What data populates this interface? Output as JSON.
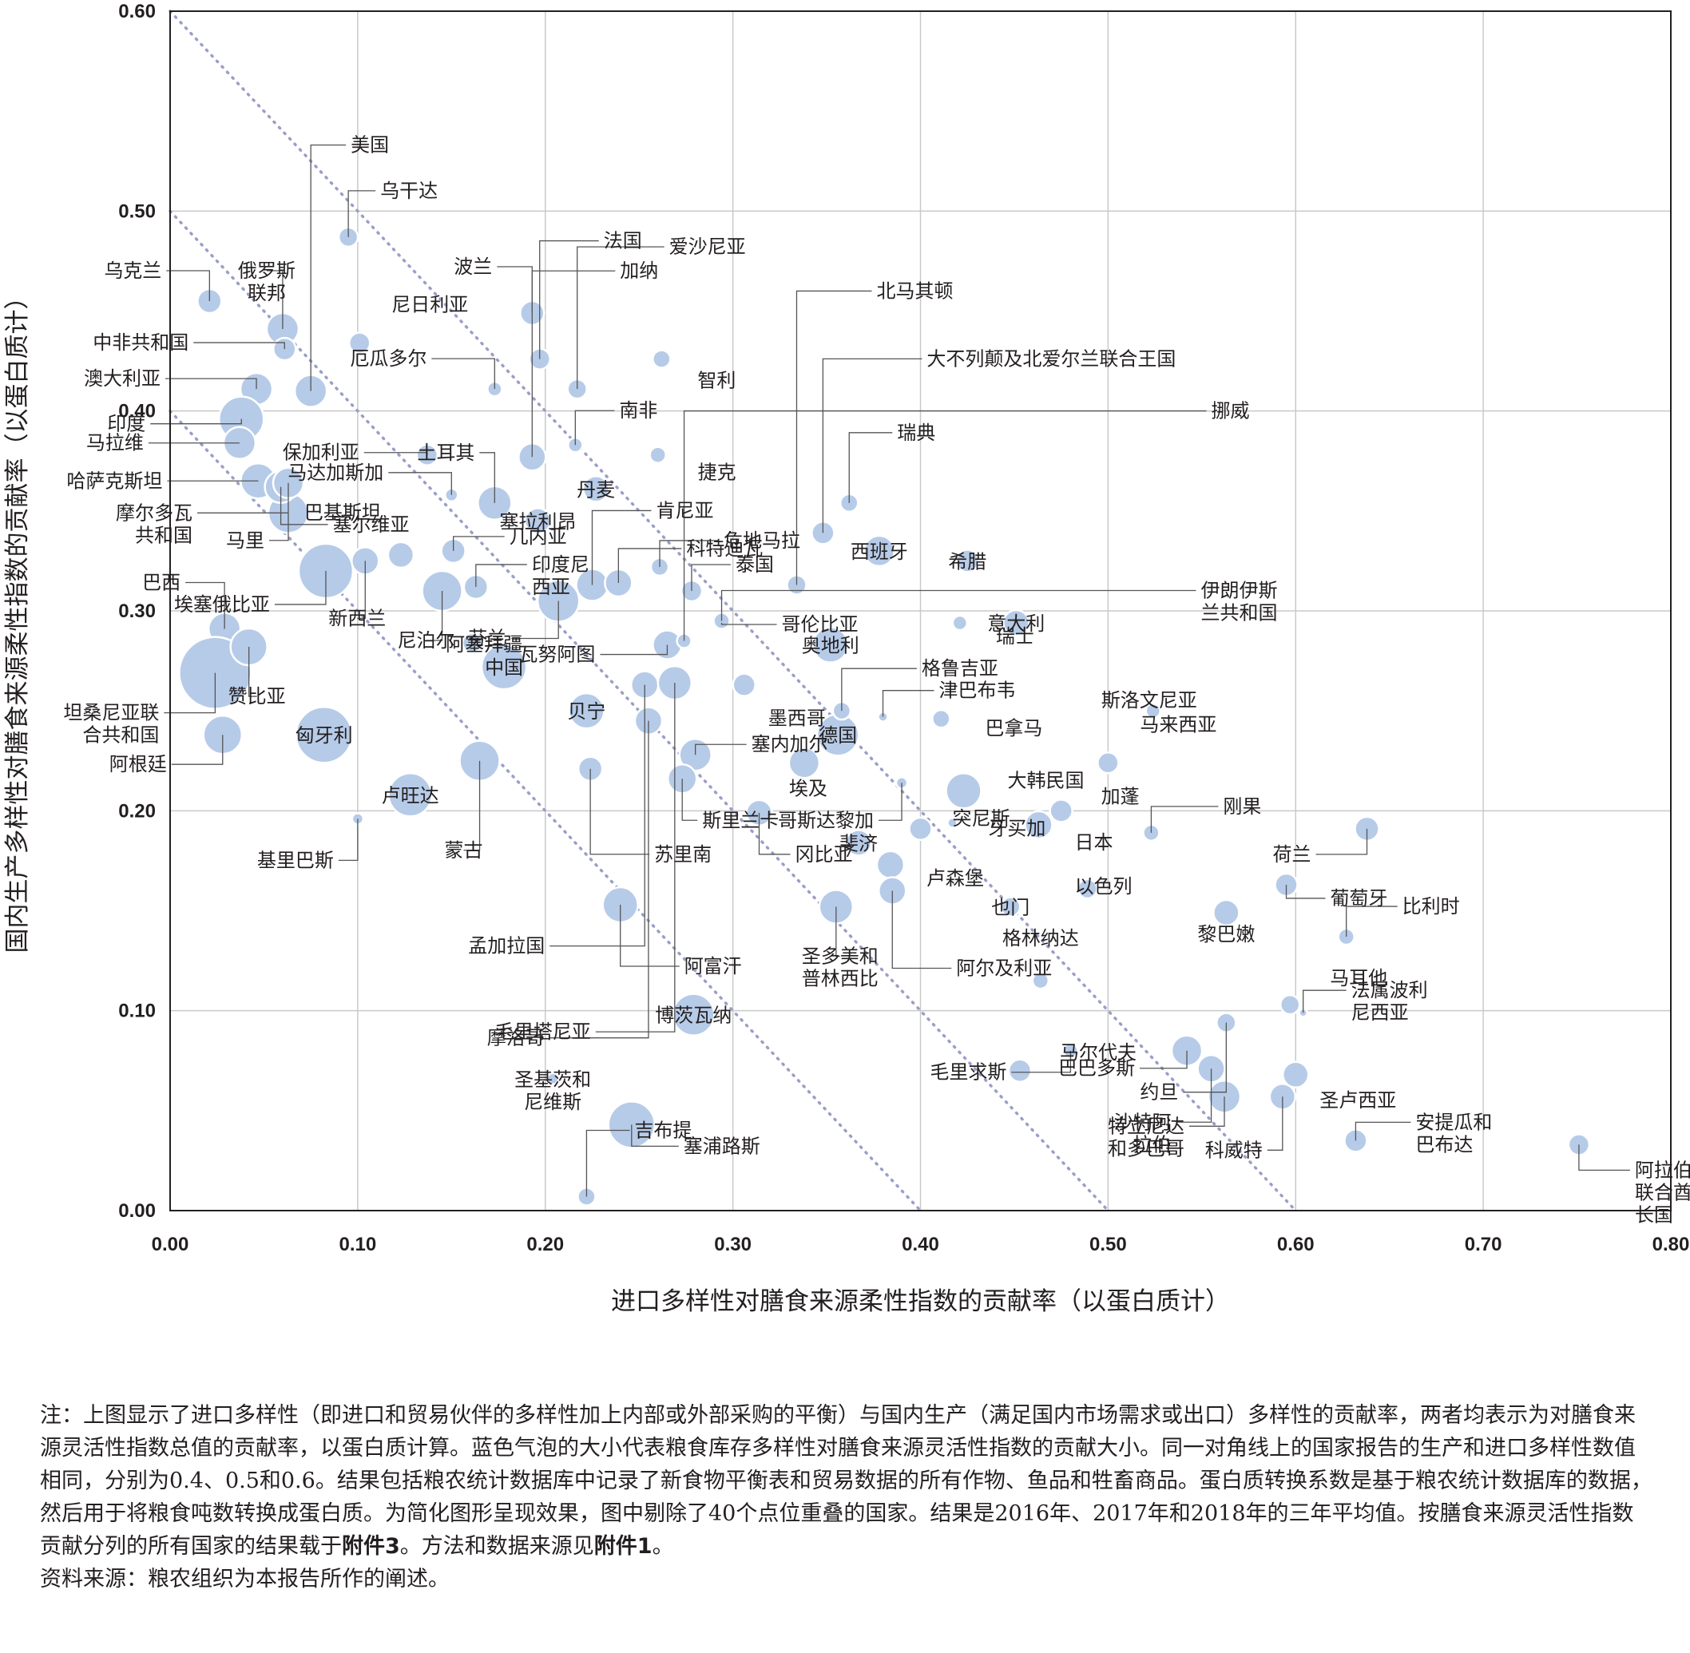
{
  "chart_data": {
    "type": "scatter",
    "title": "",
    "xlabel": "进口多样性对膳食来源柔性指数的贡献率（以蛋白质计）",
    "ylabel": "国内生产多样性对膳食来源柔性指数的贡献率（以蛋白质计）",
    "xlim": [
      0,
      0.8
    ],
    "ylim": [
      0,
      0.6
    ],
    "x_ticks": [
      "0.00",
      "0.10",
      "0.20",
      "0.30",
      "0.40",
      "0.50",
      "0.60",
      "0.70",
      "0.80"
    ],
    "y_ticks": [
      "0.00",
      "0.10",
      "0.20",
      "0.30",
      "0.40",
      "0.50",
      "0.60"
    ],
    "grid": true,
    "bubble_color": "#b6cbe8",
    "bubble_edge": "#ffffff",
    "diagonal_color": "#9a9ec8",
    "diagonals": [
      0.4,
      0.5,
      0.6
    ],
    "points": [
      {
        "name": "美国",
        "x": 0.075,
        "y": 0.41,
        "size": 20
      },
      {
        "name": "乌干达",
        "x": 0.095,
        "y": 0.487,
        "size": 12
      },
      {
        "name": "乌克兰",
        "x": 0.021,
        "y": 0.455,
        "size": 15
      },
      {
        "name": "俄罗斯\n联邦",
        "x": 0.06,
        "y": 0.441,
        "size": 20
      },
      {
        "name": "中非共和国",
        "x": 0.061,
        "y": 0.431,
        "size": 14
      },
      {
        "name": "澳大利亚",
        "x": 0.046,
        "y": 0.411,
        "size": 20
      },
      {
        "name": "印度",
        "x": 0.038,
        "y": 0.396,
        "size": 28
      },
      {
        "name": "马拉维",
        "x": 0.037,
        "y": 0.384,
        "size": 20
      },
      {
        "name": "哈萨克斯坦",
        "x": 0.047,
        "y": 0.365,
        "size": 22
      },
      {
        "name": "摩尔多瓦\n共和国",
        "x": 0.063,
        "y": 0.349,
        "size": 25
      },
      {
        "name": "塞尔维亚",
        "x": 0.059,
        "y": 0.362,
        "size": 20
      },
      {
        "name": "马里",
        "x": 0.063,
        "y": 0.364,
        "size": 19
      },
      {
        "name": "巴西",
        "x": 0.029,
        "y": 0.291,
        "size": 20
      },
      {
        "name": "埃塞俄比亚",
        "x": 0.083,
        "y": 0.32,
        "size": 34
      },
      {
        "name": "坦桑尼亚联\n合共和国",
        "x": 0.024,
        "y": 0.269,
        "size": 45
      },
      {
        "name": "阿根廷",
        "x": 0.028,
        "y": 0.238,
        "size": 24
      },
      {
        "name": "赞比亚",
        "x": 0.042,
        "y": 0.282,
        "size": 23
      },
      {
        "name": "匈牙利",
        "x": 0.082,
        "y": 0.238,
        "size": 35
      },
      {
        "name": "新西兰",
        "x": 0.104,
        "y": 0.325,
        "size": 17
      },
      {
        "name": "尼日利亚",
        "x": 0.101,
        "y": 0.434,
        "size": 13
      },
      {
        "name": "厄瓜多尔",
        "x": 0.173,
        "y": 0.411,
        "size": 9
      },
      {
        "name": "保加利亚",
        "x": 0.137,
        "y": 0.378,
        "size": 13
      },
      {
        "name": "马达加斯加",
        "x": 0.15,
        "y": 0.358,
        "size": 8
      },
      {
        "name": "土耳其",
        "x": 0.173,
        "y": 0.354,
        "size": 21
      },
      {
        "name": "巴基斯坦",
        "x": 0.123,
        "y": 0.328,
        "size": 16
      },
      {
        "name": "几内亚",
        "x": 0.151,
        "y": 0.33,
        "size": 15
      },
      {
        "name": "尼泊尔",
        "x": 0.145,
        "y": 0.31,
        "size": 25
      },
      {
        "name": "印度尼\n西亚",
        "x": 0.163,
        "y": 0.312,
        "size": 15
      },
      {
        "name": "阿塞拜疆",
        "x": 0.161,
        "y": 0.284,
        "size": 12
      },
      {
        "name": "中国",
        "x": 0.178,
        "y": 0.272,
        "size": 28
      },
      {
        "name": "蒙古",
        "x": 0.165,
        "y": 0.225,
        "size": 25
      },
      {
        "name": "卢旺达",
        "x": 0.128,
        "y": 0.208,
        "size": 27
      },
      {
        "name": "基里巴斯",
        "x": 0.1,
        "y": 0.196,
        "size": 7
      },
      {
        "name": "波兰",
        "x": 0.193,
        "y": 0.449,
        "size": 15
      },
      {
        "name": "法国",
        "x": 0.197,
        "y": 0.426,
        "size": 13
      },
      {
        "name": "加纳",
        "x": 0.193,
        "y": 0.377,
        "size": 17
      },
      {
        "name": "爱沙尼亚",
        "x": 0.217,
        "y": 0.411,
        "size": 12
      },
      {
        "name": "塞拉利昂",
        "x": 0.196,
        "y": 0.345,
        "size": 16
      },
      {
        "name": "南非",
        "x": 0.216,
        "y": 0.383,
        "size": 9
      },
      {
        "name": "丹麦",
        "x": 0.227,
        "y": 0.361,
        "size": 16
      },
      {
        "name": "芬兰",
        "x": 0.207,
        "y": 0.305,
        "size": 26
      },
      {
        "name": "肯尼亚",
        "x": 0.225,
        "y": 0.313,
        "size": 20
      },
      {
        "name": "科特迪瓦",
        "x": 0.239,
        "y": 0.314,
        "size": 17
      },
      {
        "name": "瓦努阿图",
        "x": 0.265,
        "y": 0.283,
        "size": 18
      },
      {
        "name": "智利",
        "x": 0.262,
        "y": 0.426,
        "size": 11
      },
      {
        "name": "捷克",
        "x": 0.26,
        "y": 0.378,
        "size": 10
      },
      {
        "name": "危地马拉",
        "x": 0.261,
        "y": 0.322,
        "size": 11
      },
      {
        "name": "泰国",
        "x": 0.278,
        "y": 0.31,
        "size": 13
      },
      {
        "name": "哥伦比亚",
        "x": 0.294,
        "y": 0.294,
        "size": 9
      },
      {
        "name": "北马其顿",
        "x": 0.334,
        "y": 0.313,
        "size": 12
      },
      {
        "name": "大不列颠及北爱尔兰联合王国",
        "x": 0.348,
        "y": 0.339,
        "size": 14
      },
      {
        "name": "瑞典",
        "x": 0.362,
        "y": 0.354,
        "size": 11
      },
      {
        "name": "西班牙",
        "x": 0.378,
        "y": 0.33,
        "size": 19
      },
      {
        "name": "希腊",
        "x": 0.425,
        "y": 0.325,
        "size": 14
      },
      {
        "name": "挪威",
        "x": 0.274,
        "y": 0.285,
        "size": 9
      },
      {
        "name": "伊朗伊斯\n兰共和国",
        "x": 0.294,
        "y": 0.295,
        "size": 10
      },
      {
        "name": "贝宁",
        "x": 0.222,
        "y": 0.25,
        "size": 22
      },
      {
        "name": "孟加拉国",
        "x": 0.253,
        "y": 0.263,
        "size": 17
      },
      {
        "name": "摩洛哥",
        "x": 0.255,
        "y": 0.245,
        "size": 17
      },
      {
        "name": "毛里塔尼亚",
        "x": 0.269,
        "y": 0.264,
        "size": 21
      },
      {
        "name": "塞内加尔",
        "x": 0.28,
        "y": 0.228,
        "size": 20
      },
      {
        "name": "斯里兰卡",
        "x": 0.273,
        "y": 0.216,
        "size": 18
      },
      {
        "name": "苏里南",
        "x": 0.224,
        "y": 0.221,
        "size": 15
      },
      {
        "name": "阿富汗",
        "x": 0.24,
        "y": 0.153,
        "size": 22
      },
      {
        "name": "博茨瓦纳",
        "x": 0.279,
        "y": 0.098,
        "size": 26
      },
      {
        "name": "墨西哥",
        "x": 0.306,
        "y": 0.263,
        "size": 14
      },
      {
        "name": "冈比亚",
        "x": 0.314,
        "y": 0.199,
        "size": 16
      },
      {
        "name": "埃及",
        "x": 0.338,
        "y": 0.224,
        "size": 19
      },
      {
        "name": "奥地利",
        "x": 0.352,
        "y": 0.283,
        "size": 22
      },
      {
        "name": "德国",
        "x": 0.356,
        "y": 0.238,
        "size": 26
      },
      {
        "name": "格鲁吉亚",
        "x": 0.358,
        "y": 0.25,
        "size": 11
      },
      {
        "name": "津巴布韦",
        "x": 0.38,
        "y": 0.247,
        "size": 6
      },
      {
        "name": "哥斯达黎加",
        "x": 0.39,
        "y": 0.214,
        "size": 7
      },
      {
        "name": "斐济",
        "x": 0.367,
        "y": 0.184,
        "size": 16
      },
      {
        "name": "卢森堡",
        "x": 0.384,
        "y": 0.173,
        "size": 17
      },
      {
        "name": "圣多美和\n普林西比",
        "x": 0.355,
        "y": 0.152,
        "size": 21
      },
      {
        "name": "突尼斯",
        "x": 0.4,
        "y": 0.191,
        "size": 14
      },
      {
        "name": "阿尔及利亚",
        "x": 0.385,
        "y": 0.16,
        "size": 17
      },
      {
        "name": "巴拿马",
        "x": 0.411,
        "y": 0.246,
        "size": 11
      },
      {
        "name": "瑞士",
        "x": 0.421,
        "y": 0.294,
        "size": 9
      },
      {
        "name": "意大利",
        "x": 0.451,
        "y": 0.294,
        "size": 16
      },
      {
        "name": "大韩民国",
        "x": 0.423,
        "y": 0.21,
        "size": 22
      },
      {
        "name": "牙买加",
        "x": 0.417,
        "y": 0.194,
        "size": 6
      },
      {
        "name": "日本",
        "x": 0.463,
        "y": 0.193,
        "size": 17
      },
      {
        "name": "加蓬",
        "x": 0.475,
        "y": 0.2,
        "size": 14
      },
      {
        "name": "马来西亚",
        "x": 0.5,
        "y": 0.224,
        "size": 13
      },
      {
        "name": "以色列",
        "x": 0.489,
        "y": 0.161,
        "size": 12
      },
      {
        "name": "也门",
        "x": 0.448,
        "y": 0.152,
        "size": 12
      },
      {
        "name": "格林纳达",
        "x": 0.464,
        "y": 0.115,
        "size": 10
      },
      {
        "name": "斯洛文尼亚",
        "x": 0.524,
        "y": 0.25,
        "size": 9
      },
      {
        "name": "刚果",
        "x": 0.523,
        "y": 0.189,
        "size": 10
      },
      {
        "name": "马尔代夫",
        "x": 0.453,
        "y": 0.07,
        "size": 14
      },
      {
        "name": "毛里求斯",
        "x": 0.48,
        "y": 0.08,
        "size": 9
      },
      {
        "name": "沙特阿\n拉伯",
        "x": 0.555,
        "y": 0.071,
        "size": 17
      },
      {
        "name": "巴巴多斯",
        "x": 0.542,
        "y": 0.08,
        "size": 19
      },
      {
        "name": "特立尼达\n和多巴哥",
        "x": 0.562,
        "y": 0.057,
        "size": 20
      },
      {
        "name": "约旦",
        "x": 0.563,
        "y": 0.094,
        "size": 12
      },
      {
        "name": "科威特",
        "x": 0.593,
        "y": 0.057,
        "size": 16
      },
      {
        "name": "圣卢西亚",
        "x": 0.6,
        "y": 0.068,
        "size": 16
      },
      {
        "name": "黎巴嫩",
        "x": 0.563,
        "y": 0.149,
        "size": 16
      },
      {
        "name": "葡萄牙",
        "x": 0.595,
        "y": 0.163,
        "size": 14
      },
      {
        "name": "荷兰",
        "x": 0.638,
        "y": 0.191,
        "size": 15
      },
      {
        "name": "比利时",
        "x": 0.627,
        "y": 0.137,
        "size": 10
      },
      {
        "name": "马耳他",
        "x": 0.597,
        "y": 0.103,
        "size": 12
      },
      {
        "name": "法属波利\n尼西亚",
        "x": 0.604,
        "y": 0.099,
        "size": 5
      },
      {
        "name": "安提瓜和\n巴布达",
        "x": 0.632,
        "y": 0.035,
        "size": 14
      },
      {
        "name": "阿拉伯\n联合酋\n长国",
        "x": 0.751,
        "y": 0.033,
        "size": 13
      },
      {
        "name": "塞浦路斯",
        "x": 0.246,
        "y": 0.043,
        "size": 29
      },
      {
        "name": "吉布提",
        "x": 0.222,
        "y": 0.007,
        "size": 11
      },
      {
        "name": "圣基茨和\n尼维斯",
        "x": 0.204,
        "y": 0.066,
        "size": 7
      }
    ]
  },
  "notes": {
    "note_text": "注：上图显示了进口多样性（即进口和贸易伙伴的多样性加上内部或外部采购的平衡）与国内生产（满足国内市场需求或出口）多样性的贡献率，两者均表示为对膳食来源灵活性指数总值的贡献率，以蛋白质计算。蓝色气泡的大小代表粮食库存多样性对膳食来源灵活性指数的贡献大小。同一对角线上的国家报告的生产和进口多样性数值相同，分别为0.4、0.5和0.6。结果包括粮农统计数据库中记录了新食物平衡表和贸易数据的所有作物、鱼品和牲畜商品。蛋白质转换系数是基于粮农统计数据库的数据，然后用于将粮食吨数转换成蛋白质。为简化图形呈现效果，图中剔除了40个点位重叠的国家。结果是2016年、2017年和2018年的三年平均值。按膳食来源灵活性指数贡献分列的所有国家的结果载于",
    "annex3": "附件3",
    "mid_text": "。方法和数据来源见",
    "annex1": "附件1",
    "end_text": "。",
    "source": "资料来源：粮农组织为本报告所作的阐述。"
  }
}
